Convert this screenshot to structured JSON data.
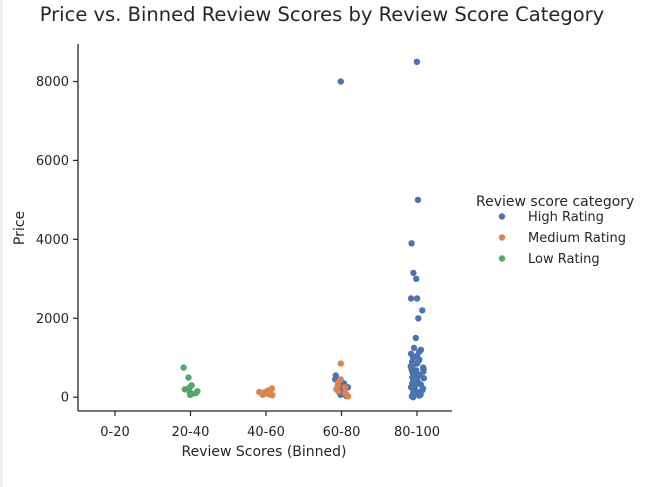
{
  "chart_data": {
    "type": "scatter",
    "title": "Price vs. Binned Review Scores by Review Score Category",
    "xlabel": "Review Scores (Binned)",
    "ylabel": "Price",
    "categories": [
      "0-20",
      "20-40",
      "40-60",
      "60-80",
      "80-100"
    ],
    "yticks": [
      0,
      2000,
      4000,
      6000,
      8000
    ],
    "ylim": [
      -350,
      8950
    ],
    "grid": false,
    "legend_position": "right",
    "legend_title": "Review score category",
    "series": [
      {
        "name": "High Rating",
        "color": "#4c72b0",
        "points": [
          [
            "80-100",
            8500
          ],
          [
            "80-100",
            5000
          ],
          [
            "80-100",
            3900
          ],
          [
            "80-100",
            3150
          ],
          [
            "80-100",
            3000
          ],
          [
            "80-100",
            2500
          ],
          [
            "80-100",
            2500
          ],
          [
            "80-100",
            2200
          ],
          [
            "80-100",
            2000
          ],
          [
            "80-100",
            1500
          ],
          [
            "80-100",
            1250
          ],
          [
            "80-100",
            1200
          ],
          [
            "80-100",
            1150
          ],
          [
            "80-100",
            1100
          ],
          [
            "80-100",
            1050
          ],
          [
            "80-100",
            1000
          ],
          [
            "80-100",
            950
          ],
          [
            "80-100",
            900
          ],
          [
            "80-100",
            880
          ],
          [
            "80-100",
            850
          ],
          [
            "80-100",
            800
          ],
          [
            "80-100",
            780
          ],
          [
            "80-100",
            750
          ],
          [
            "80-100",
            720
          ],
          [
            "80-100",
            700
          ],
          [
            "80-100",
            680
          ],
          [
            "80-100",
            650
          ],
          [
            "80-100",
            620
          ],
          [
            "80-100",
            600
          ],
          [
            "80-100",
            580
          ],
          [
            "80-100",
            550
          ],
          [
            "80-100",
            520
          ],
          [
            "80-100",
            500
          ],
          [
            "80-100",
            480
          ],
          [
            "80-100",
            450
          ],
          [
            "80-100",
            420
          ],
          [
            "80-100",
            400
          ],
          [
            "80-100",
            380
          ],
          [
            "80-100",
            350
          ],
          [
            "80-100",
            320
          ],
          [
            "80-100",
            300
          ],
          [
            "80-100",
            280
          ],
          [
            "80-100",
            250
          ],
          [
            "80-100",
            220
          ],
          [
            "80-100",
            200
          ],
          [
            "80-100",
            180
          ],
          [
            "80-100",
            150
          ],
          [
            "80-100",
            120
          ],
          [
            "80-100",
            100
          ],
          [
            "80-100",
            80
          ],
          [
            "80-100",
            60
          ],
          [
            "80-100",
            40
          ],
          [
            "80-100",
            20
          ],
          [
            "80-100",
            0
          ],
          [
            "60-80",
            8000
          ],
          [
            "60-80",
            550
          ],
          [
            "60-80",
            450
          ],
          [
            "60-80",
            400
          ],
          [
            "60-80",
            350
          ],
          [
            "60-80",
            300
          ],
          [
            "60-80",
            250
          ],
          [
            "60-80",
            200
          ],
          [
            "60-80",
            150
          ],
          [
            "60-80",
            100
          ],
          [
            "60-80",
            60
          ],
          [
            "60-80",
            30
          ]
        ]
      },
      {
        "name": "Medium Rating",
        "color": "#dd8452",
        "points": [
          [
            "60-80",
            850
          ],
          [
            "60-80",
            450
          ],
          [
            "60-80",
            380
          ],
          [
            "60-80",
            300
          ],
          [
            "60-80",
            250
          ],
          [
            "60-80",
            200
          ],
          [
            "60-80",
            150
          ],
          [
            "60-80",
            100
          ],
          [
            "60-80",
            60
          ],
          [
            "60-80",
            20
          ],
          [
            "40-60",
            220
          ],
          [
            "40-60",
            200
          ],
          [
            "40-60",
            180
          ],
          [
            "40-60",
            160
          ],
          [
            "40-60",
            150
          ],
          [
            "40-60",
            130
          ],
          [
            "40-60",
            120
          ],
          [
            "40-60",
            110
          ],
          [
            "40-60",
            100
          ],
          [
            "40-60",
            90
          ],
          [
            "40-60",
            80
          ],
          [
            "40-60",
            70
          ],
          [
            "40-60",
            60
          ],
          [
            "40-60",
            50
          ]
        ]
      },
      {
        "name": "Low Rating",
        "color": "#55a868",
        "points": [
          [
            "20-40",
            750
          ],
          [
            "20-40",
            500
          ],
          [
            "20-40",
            300
          ],
          [
            "20-40",
            250
          ],
          [
            "20-40",
            200
          ],
          [
            "20-40",
            150
          ],
          [
            "20-40",
            120
          ],
          [
            "20-40",
            100
          ],
          [
            "20-40",
            80
          ],
          [
            "20-40",
            60
          ]
        ]
      }
    ]
  }
}
